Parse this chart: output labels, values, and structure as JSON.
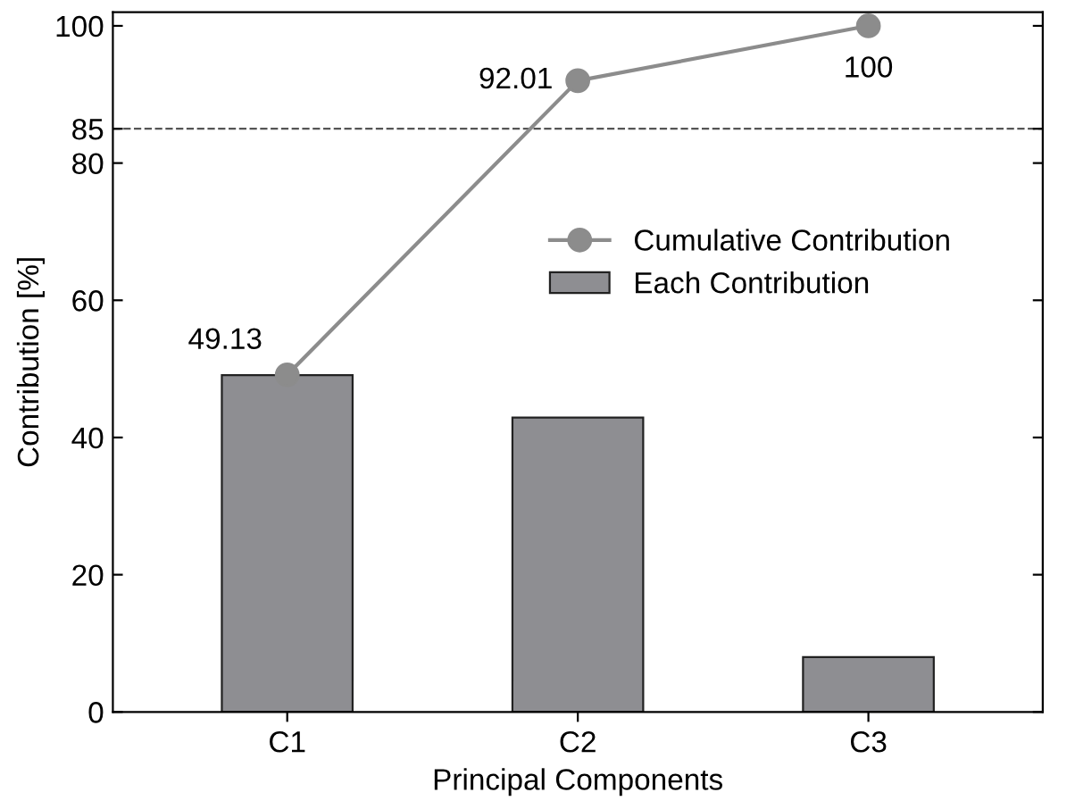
{
  "chart_data": {
    "type": "bar",
    "xlabel": "Principal Components",
    "ylabel": "Contribution [%]",
    "categories": [
      "C1",
      "C2",
      "C3"
    ],
    "series": [
      {
        "name": "Cumulative Contribution",
        "type": "line",
        "color": "#8c8c8c",
        "values": [
          49.13,
          92.01,
          100
        ],
        "value_labels": [
          "49.13",
          "92.01",
          "100"
        ],
        "marker": "circle"
      },
      {
        "name": "Each Contribution",
        "color": "#8e8e92",
        "values": [
          49.1,
          42.9,
          8.0
        ]
      }
    ],
    "ylim": [
      0,
      102
    ],
    "yticks": [
      0,
      20,
      40,
      60,
      80,
      85,
      100
    ],
    "ref_lines": [
      {
        "axis": "y",
        "value": 85,
        "color": "#555555",
        "line_style": "dashed"
      }
    ],
    "legend": "right",
    "grid": false
  }
}
